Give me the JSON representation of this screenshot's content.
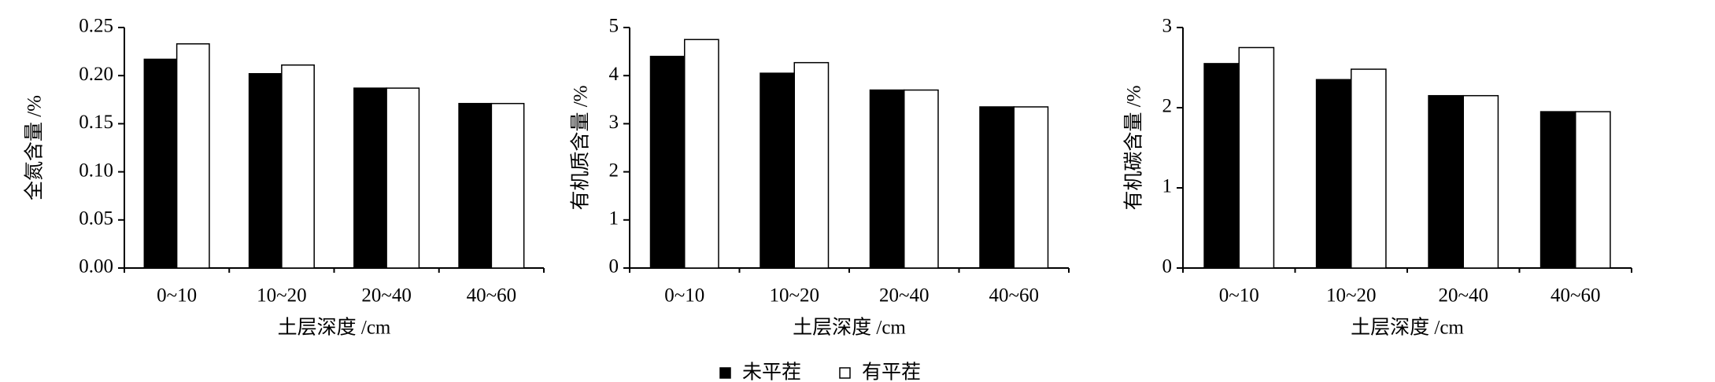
{
  "chart_data": [
    {
      "type": "bar",
      "y_label": "全氮含量 /%",
      "x_label": "土层深度 /cm",
      "categories": [
        "0~10",
        "10~20",
        "20~40",
        "40~60"
      ],
      "series": [
        {
          "color": "#000000",
          "values": [
            0.217,
            0.202,
            0.187,
            0.171
          ]
        },
        {
          "color": "#ffffff",
          "values": [
            0.233,
            0.211,
            0.187,
            0.171
          ]
        }
      ],
      "ylim": [
        0,
        0.25
      ],
      "yticks": [
        {
          "value": 0,
          "label": "0.00"
        },
        0.05,
        {
          "value": 0.1,
          "label": "0.10"
        },
        0.15,
        {
          "value": 0.2,
          "label": "0.20"
        },
        0.25
      ]
    },
    {
      "type": "bar",
      "y_label": "有机质含量 /%",
      "x_label": "土层深度 /cm",
      "categories": [
        "0~10",
        "10~20",
        "20~40",
        "40~60"
      ],
      "series": [
        {
          "color": "#000000",
          "values": [
            4.4,
            4.05,
            3.7,
            3.35
          ]
        },
        {
          "color": "#ffffff",
          "values": [
            4.75,
            4.27,
            3.7,
            3.35
          ]
        }
      ],
      "ylim": [
        0,
        5
      ],
      "yticks": [
        0,
        1,
        2,
        3,
        4,
        5
      ]
    },
    {
      "type": "bar",
      "y_label": "有机碳含量 /%",
      "x_label": "土层深度 /cm",
      "categories": [
        "0~10",
        "10~20",
        "20~40",
        "40~60"
      ],
      "series": [
        {
          "color": "#000000",
          "values": [
            2.55,
            2.35,
            2.15,
            1.95
          ]
        },
        {
          "color": "#ffffff",
          "values": [
            2.75,
            2.48,
            2.15,
            1.95
          ]
        }
      ],
      "ylim": [
        0,
        3
      ],
      "yticks": [
        0,
        1,
        2,
        3
      ]
    }
  ],
  "legend": {
    "items": [
      {
        "name": "未平茬",
        "color": "#000000"
      },
      {
        "name": "有平茬",
        "color": "#ffffff"
      }
    ]
  }
}
